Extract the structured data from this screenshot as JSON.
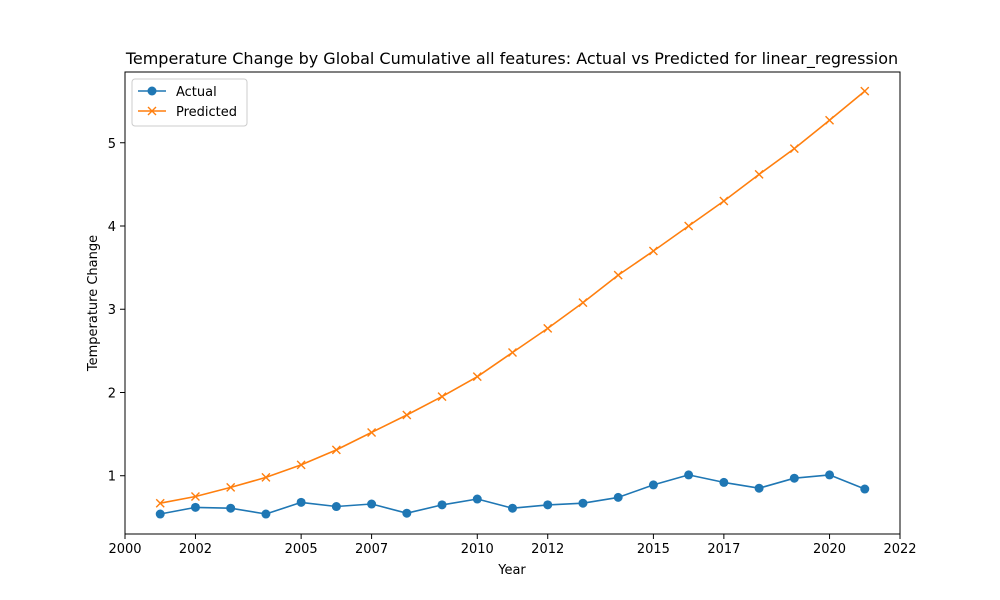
{
  "chart_data": {
    "type": "line",
    "title": "Temperature Change by Global Cumulative all features: Actual vs Predicted for linear_regression",
    "xlabel": "Year",
    "ylabel": "Temperature Change",
    "xlim": [
      2000,
      2022
    ],
    "ylim": [
      0.3,
      5.85
    ],
    "x_ticks": [
      2000,
      2002,
      2005,
      2007,
      2010,
      2012,
      2015,
      2017,
      2020,
      2022
    ],
    "x_tick_labels": [
      "2000",
      "2002",
      "2005",
      "2007",
      "2010",
      "2012",
      "2015",
      "2017",
      "2020",
      "2022"
    ],
    "y_ticks": [
      1,
      2,
      3,
      4,
      5
    ],
    "y_tick_labels": [
      "1",
      "2",
      "3",
      "4",
      "5"
    ],
    "grid": false,
    "legend_position": "top-left",
    "x": [
      2001,
      2002,
      2003,
      2004,
      2005,
      2006,
      2007,
      2008,
      2009,
      2010,
      2011,
      2012,
      2013,
      2014,
      2015,
      2016,
      2017,
      2018,
      2019,
      2020,
      2021
    ],
    "series": [
      {
        "name": "Actual",
        "color": "#1f77b4",
        "marker": "circle",
        "values": [
          0.54,
          0.62,
          0.61,
          0.54,
          0.68,
          0.63,
          0.66,
          0.55,
          0.65,
          0.72,
          0.61,
          0.65,
          0.67,
          0.74,
          0.89,
          1.01,
          0.92,
          0.85,
          0.97,
          1.01,
          0.84
        ]
      },
      {
        "name": "Predicted",
        "color": "#ff7f0e",
        "marker": "x",
        "values": [
          0.67,
          0.75,
          0.86,
          0.98,
          1.13,
          1.31,
          1.52,
          1.73,
          1.95,
          2.19,
          2.48,
          2.77,
          3.08,
          3.41,
          3.7,
          4.0,
          4.3,
          4.62,
          4.93,
          5.27,
          5.62
        ]
      }
    ]
  }
}
